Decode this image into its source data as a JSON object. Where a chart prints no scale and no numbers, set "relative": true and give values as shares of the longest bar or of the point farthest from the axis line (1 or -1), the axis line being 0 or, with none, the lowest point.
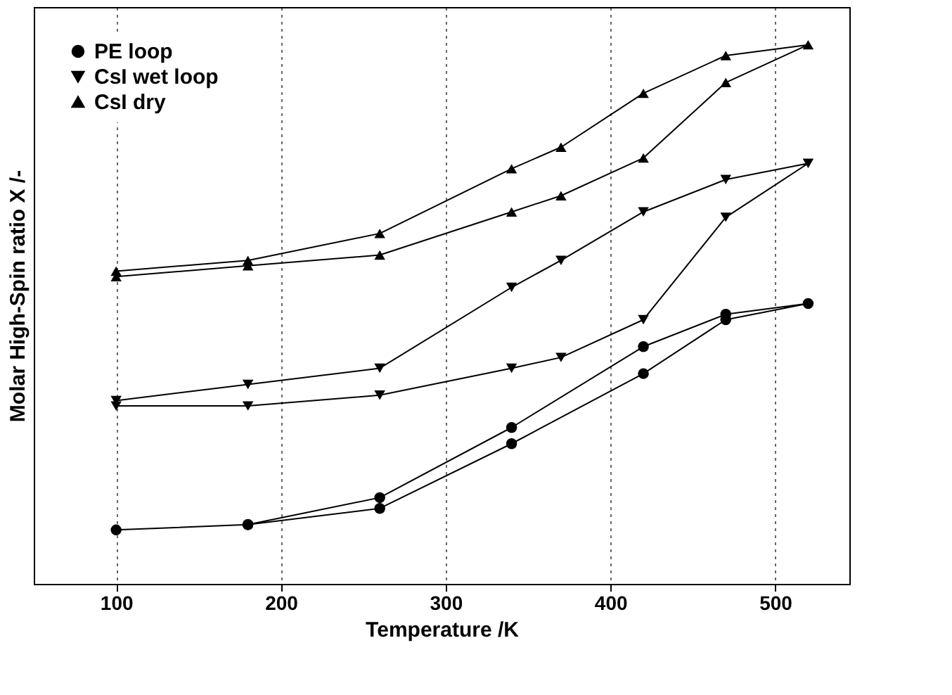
{
  "chart_data": {
    "type": "line",
    "xlabel": "Temperature /K",
    "ylabel": "Molar High-Spin ratio X /-",
    "relative": true,
    "xlim": [
      50,
      545
    ],
    "xticks": [
      100,
      200,
      300,
      400,
      500
    ],
    "grid": "x",
    "legend": "top left",
    "line_style": "solid",
    "series": [
      {
        "name": "PE loop",
        "color": "#000000",
        "marker": "circle",
        "x": [
          100,
          180,
          260,
          340,
          420,
          470,
          520,
          470,
          420,
          340,
          260,
          180
        ],
        "values": [
          0.1,
          0.11,
          0.14,
          0.26,
          0.39,
          0.49,
          0.52,
          0.5,
          0.44,
          0.29,
          0.16,
          0.11
        ]
      },
      {
        "name": "CsI wet loop",
        "color": "#000000",
        "marker": "triangle-down",
        "x": [
          100,
          180,
          260,
          340,
          370,
          420,
          470,
          520,
          470,
          420,
          370,
          340,
          260,
          180,
          100
        ],
        "values": [
          0.33,
          0.33,
          0.35,
          0.4,
          0.42,
          0.49,
          0.68,
          0.78,
          0.75,
          0.69,
          0.6,
          0.55,
          0.4,
          0.37,
          0.34
        ]
      },
      {
        "name": "CsI dry",
        "color": "#000000",
        "marker": "triangle",
        "x": [
          100,
          180,
          260,
          340,
          370,
          420,
          470,
          520,
          470,
          420,
          370,
          340,
          260,
          180,
          100
        ],
        "values": [
          0.57,
          0.59,
          0.61,
          0.69,
          0.72,
          0.79,
          0.93,
          1.0,
          0.98,
          0.91,
          0.81,
          0.77,
          0.65,
          0.6,
          0.58
        ]
      }
    ]
  }
}
